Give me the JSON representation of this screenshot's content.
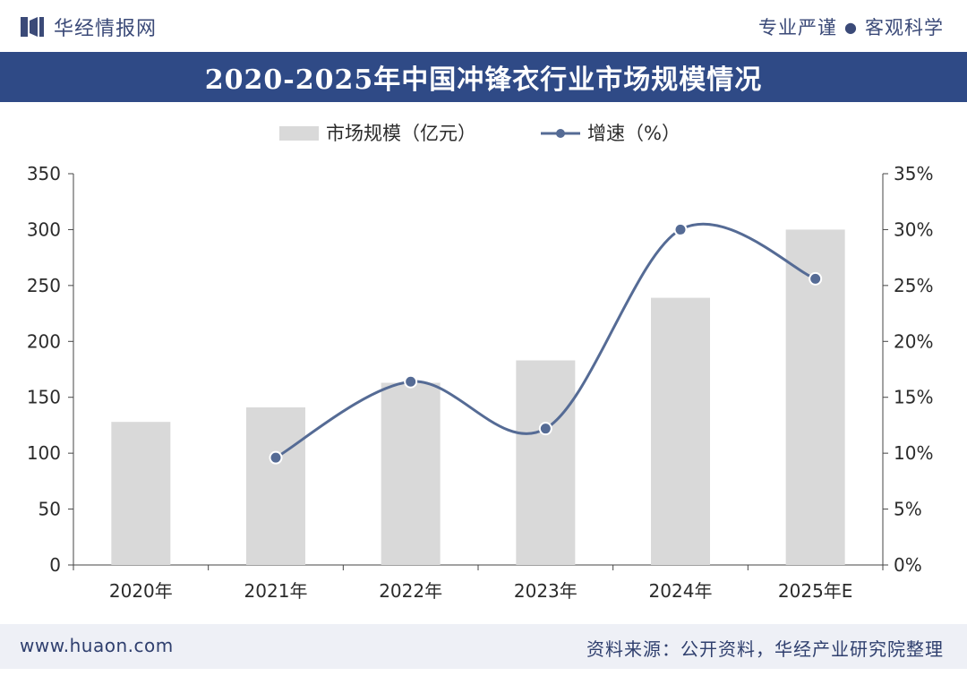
{
  "header": {
    "logo_text": "华经情报网",
    "slogan_left": "专业严谨",
    "slogan_dot": "●",
    "slogan_right": "客观科学"
  },
  "title": "2020-2025年中国冲锋衣行业市场规模情况",
  "footer": {
    "website": "www.huaon.com",
    "source": "资料来源：公开资料，华经产业研究院整理"
  },
  "colors": {
    "title_bg": "#2f4a86",
    "bar": "#d9d9d9",
    "line": "#556b95",
    "footer_bg": "#eef0f6"
  },
  "chart_data": {
    "type": "bar",
    "categories": [
      "2020年",
      "2021年",
      "2022年",
      "2023年",
      "2024年",
      "2025年E"
    ],
    "series": [
      {
        "name": "市场规模（亿元）",
        "type": "bar",
        "axis": "left",
        "values": [
          128,
          141,
          163,
          183,
          239,
          300
        ]
      },
      {
        "name": "增速（%）",
        "type": "line",
        "axis": "right",
        "values": [
          null,
          9.6,
          16.4,
          12.2,
          30.0,
          25.6
        ]
      }
    ],
    "legend": {
      "position": "top-center",
      "bar_label": "市场规模（亿元）",
      "line_label": "增速（%）"
    },
    "y_left": {
      "min": 0,
      "max": 350,
      "ticks": [
        "0",
        "50",
        "100",
        "150",
        "200",
        "250",
        "300",
        "350"
      ]
    },
    "y_right": {
      "min": 0,
      "max": 35,
      "ticks": [
        "0%",
        "5%",
        "10%",
        "15%",
        "20%",
        "25%",
        "30%",
        "35%"
      ]
    },
    "grid": false
  }
}
